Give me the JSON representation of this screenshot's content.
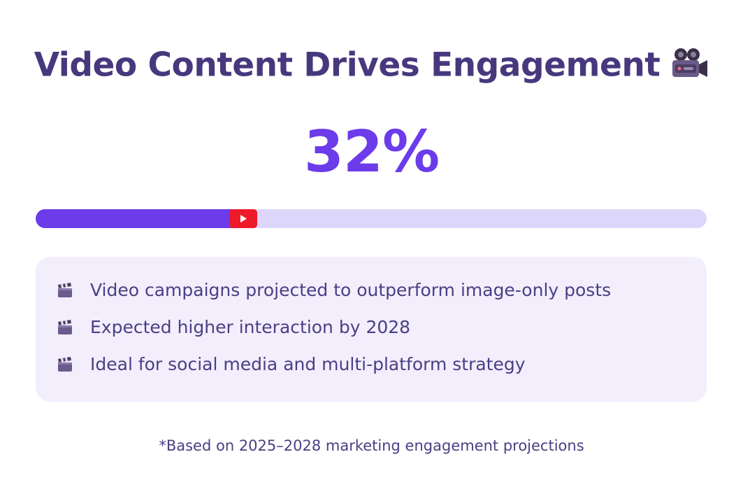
{
  "title": "Video Content Drives Engagement",
  "title_icon": "movie-camera-icon",
  "stat": {
    "value": "32%",
    "progress": 0.32
  },
  "progress_marker_icon": "play-button-icon",
  "bullets": [
    {
      "icon": "clapper-board-icon",
      "text": "Video campaigns projected to outperform image-only posts"
    },
    {
      "icon": "clapper-board-icon",
      "text": "Expected higher interaction by 2028"
    },
    {
      "icon": "clapper-board-icon",
      "text": "Ideal for social media and multi-platform strategy"
    }
  ],
  "footnote": "*Based on 2025–2028 marketing engagement projections",
  "colors": {
    "title": "#47387e",
    "stat": "#6c3bea",
    "track": "#dcd6fa",
    "fill": "#6c3bea",
    "marker": "#ee1a2a",
    "panel": "#f3eefc",
    "bullet_text": "#4a3f84",
    "footnote": "#4a3f84"
  }
}
